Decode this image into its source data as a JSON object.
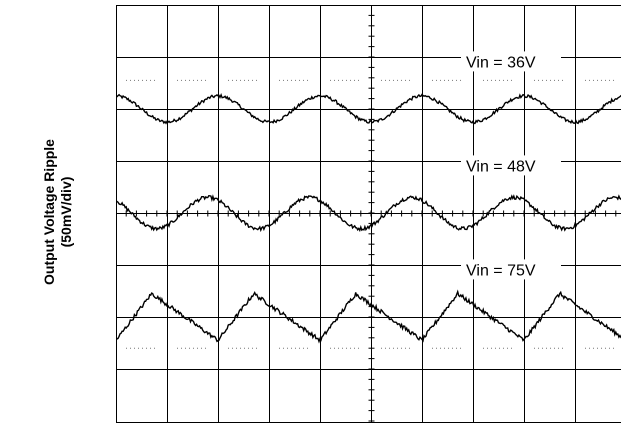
{
  "chart_data": {
    "type": "line",
    "ylabel_line1": "Output Voltage Ripple",
    "ylabel_line2": "(50mV/div)",
    "grid": true,
    "divisions": {
      "x": 10,
      "y": 8
    },
    "series": [
      {
        "name": "Vin = 36V",
        "waveform": "sine",
        "cycles": 5.0,
        "phase": 0.25,
        "amplitude_div": 0.25,
        "baseline_div": 2.0,
        "noise_div": 0.03
      },
      {
        "name": "Vin = 48V",
        "waveform": "sine",
        "cycles": 5.0,
        "phase": 0.35,
        "amplitude_div": 0.3,
        "baseline_div": 4.0,
        "noise_div": 0.035
      },
      {
        "name": "Vin = 75V",
        "waveform": "sawtooth",
        "cycles": 5.0,
        "phase": 0.0,
        "amplitude_div": 0.45,
        "baseline_div": 6.0,
        "noise_div": 0.04
      }
    ]
  }
}
